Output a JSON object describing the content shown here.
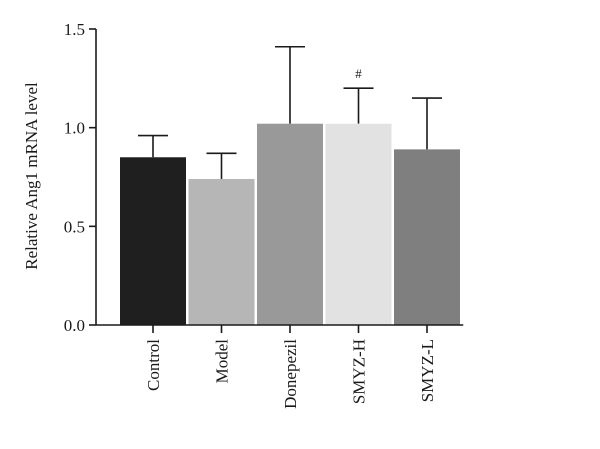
{
  "chart_data": {
    "type": "bar",
    "title": "",
    "xlabel": "",
    "ylabel": "Relative Ang1 mRNA level",
    "ylim": [
      0,
      1.5
    ],
    "yticks": [
      "0.0",
      "0.5",
      "1.0",
      "1.5"
    ],
    "grid": false,
    "categories": [
      "Control",
      "Model",
      "Donepezil",
      "SMYZ-H",
      "SMYZ-L"
    ],
    "values": [
      0.85,
      0.74,
      1.02,
      1.02,
      0.89
    ],
    "error_upper": [
      0.96,
      0.87,
      1.41,
      1.2,
      1.15
    ],
    "annotations": [
      "",
      "",
      "",
      "#",
      ""
    ],
    "colors": [
      "#1f1f1f",
      "#b6b6b6",
      "#999999",
      "#e2e2e2",
      "#7f7f7f"
    ]
  }
}
